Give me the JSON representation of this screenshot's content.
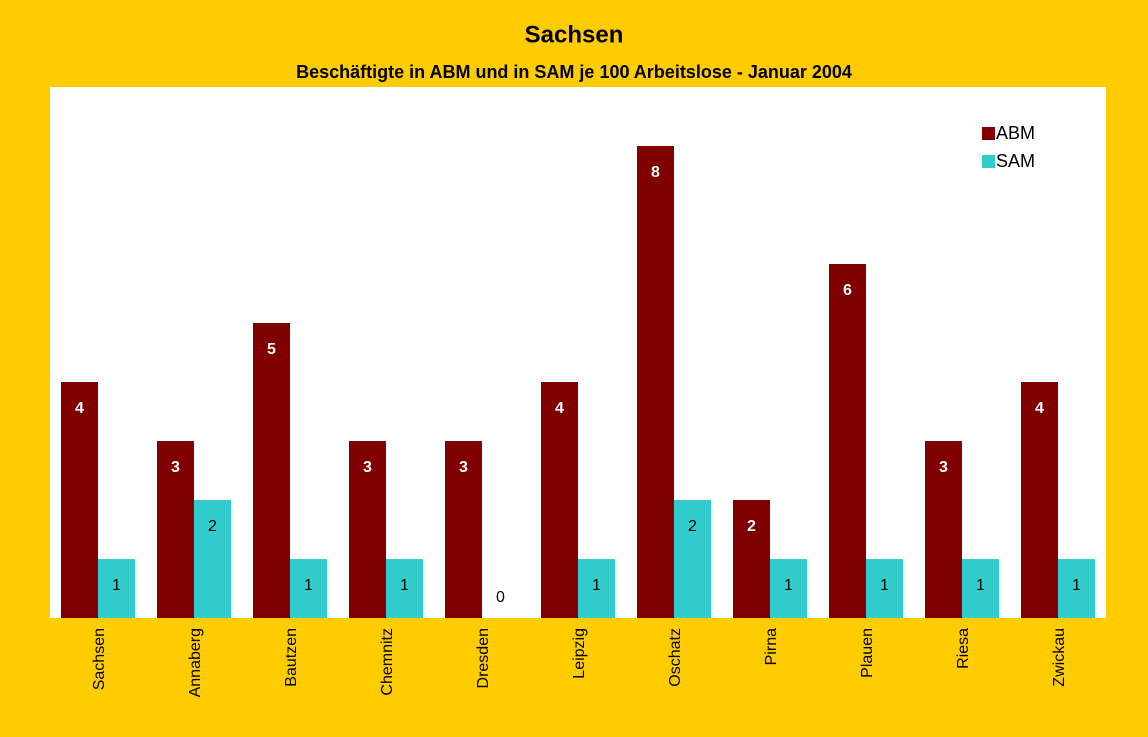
{
  "chart_data": {
    "type": "bar",
    "title": "Sachsen",
    "subtitle": "Beschäftigte in ABM und in SAM je 100 Arbeitslose  -  Januar 2004",
    "categories": [
      "Sachsen",
      "Annaberg",
      "Bautzen",
      "Chemnitz",
      "Dresden",
      "Leipzig",
      "Oschatz",
      "Pirna",
      "Plauen",
      "Riesa",
      "Zwickau"
    ],
    "series": [
      {
        "name": "ABM",
        "color": "#800000",
        "values": [
          4,
          3,
          5,
          3,
          3,
          4,
          8,
          2,
          6,
          3,
          4
        ]
      },
      {
        "name": "SAM",
        "color": "#33CCCC",
        "values": [
          1,
          2,
          1,
          1,
          0,
          1,
          2,
          1,
          1,
          1,
          1
        ]
      }
    ],
    "ylim": [
      0,
      9
    ],
    "legend": "top-right"
  }
}
